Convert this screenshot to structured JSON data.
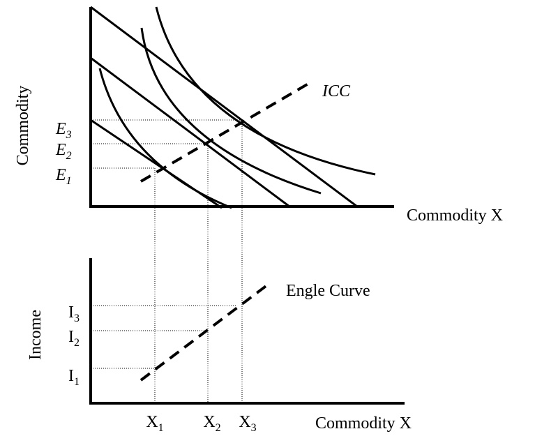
{
  "top": {
    "y_label": "Commodity",
    "x_label": "Commodity X",
    "curve_label": "ICC",
    "levels": [
      {
        "letter": "E",
        "sub": "3"
      },
      {
        "letter": "E",
        "sub": "2"
      },
      {
        "letter": "E",
        "sub": "1"
      }
    ]
  },
  "bottom": {
    "y_label": "Income",
    "x_label": "Commodity X",
    "curve_label": "Engle Curve",
    "levels": [
      {
        "letter": "I",
        "sub": "3"
      },
      {
        "letter": "I",
        "sub": "2"
      },
      {
        "letter": "I",
        "sub": "1"
      }
    ],
    "x_marks": [
      {
        "letter": "X",
        "sub": "1"
      },
      {
        "letter": "X",
        "sub": "2"
      },
      {
        "letter": "X",
        "sub": "3"
      }
    ]
  }
}
